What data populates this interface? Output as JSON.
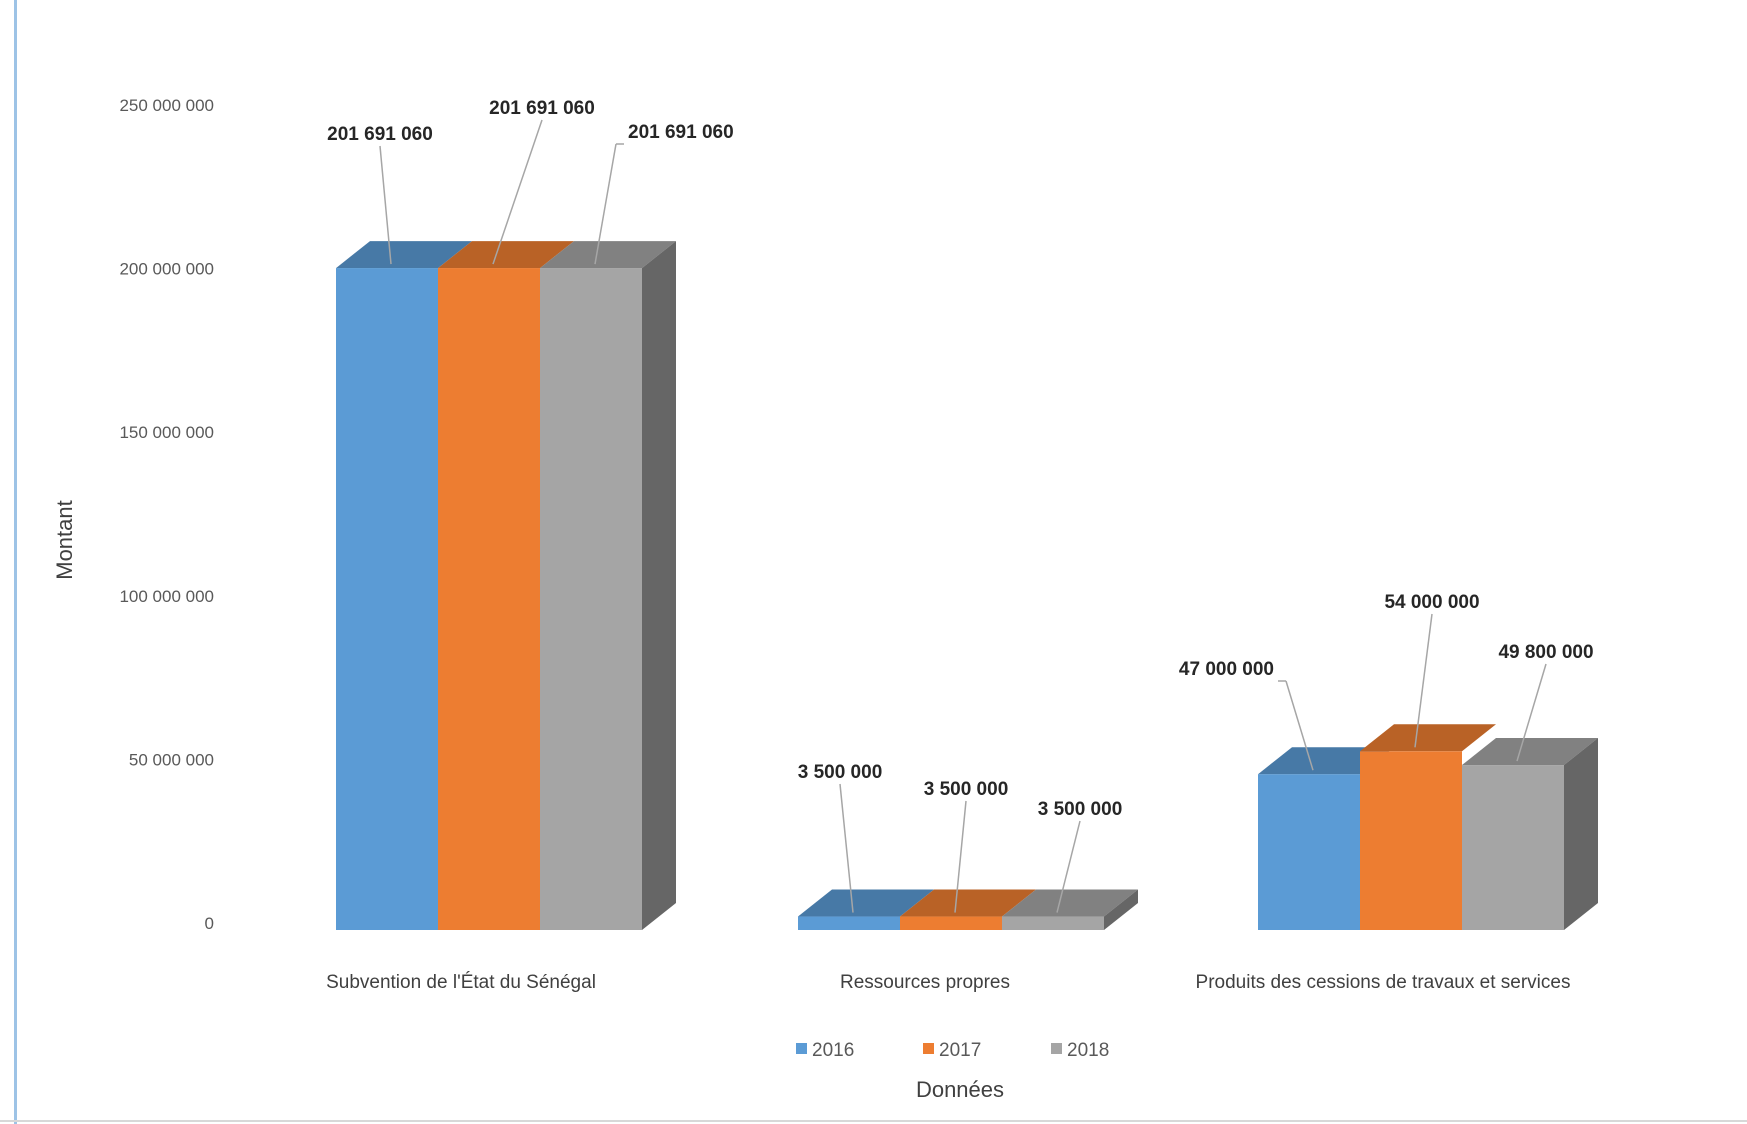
{
  "chart_data": {
    "type": "bar",
    "three_d": true,
    "categories": [
      "Subvention de l'État du Sénégal",
      "Ressources propres",
      "Produits des cessions de travaux et services"
    ],
    "series": [
      {
        "name": "2016",
        "color": "#5b9bd5",
        "values": [
          201691060,
          3500000,
          47000000
        ]
      },
      {
        "name": "2017",
        "color": "#ed7d31",
        "values": [
          201691060,
          3500000,
          54000000
        ]
      },
      {
        "name": "2018",
        "color": "#a5a5a5",
        "values": [
          201691060,
          3500000,
          49800000
        ]
      }
    ],
    "data_labels": [
      [
        "201 691 060",
        "3 500 000",
        "47 000 000"
      ],
      [
        "201 691 060",
        "3 500 000",
        "54 000 000"
      ],
      [
        "201 691 060",
        "3 500 000",
        "49 800 000"
      ]
    ],
    "ylim": [
      0,
      250000000
    ],
    "yticks": [
      0,
      50000000,
      100000000,
      150000000,
      200000000,
      250000000
    ],
    "ytick_labels": [
      "0",
      "50 000 000",
      "100 000 000",
      "150 000 000",
      "200 000 000",
      "250 000 000"
    ],
    "ylabel": "Montant",
    "xlabel": "Données",
    "legend_position": "bottom",
    "grid": false
  }
}
